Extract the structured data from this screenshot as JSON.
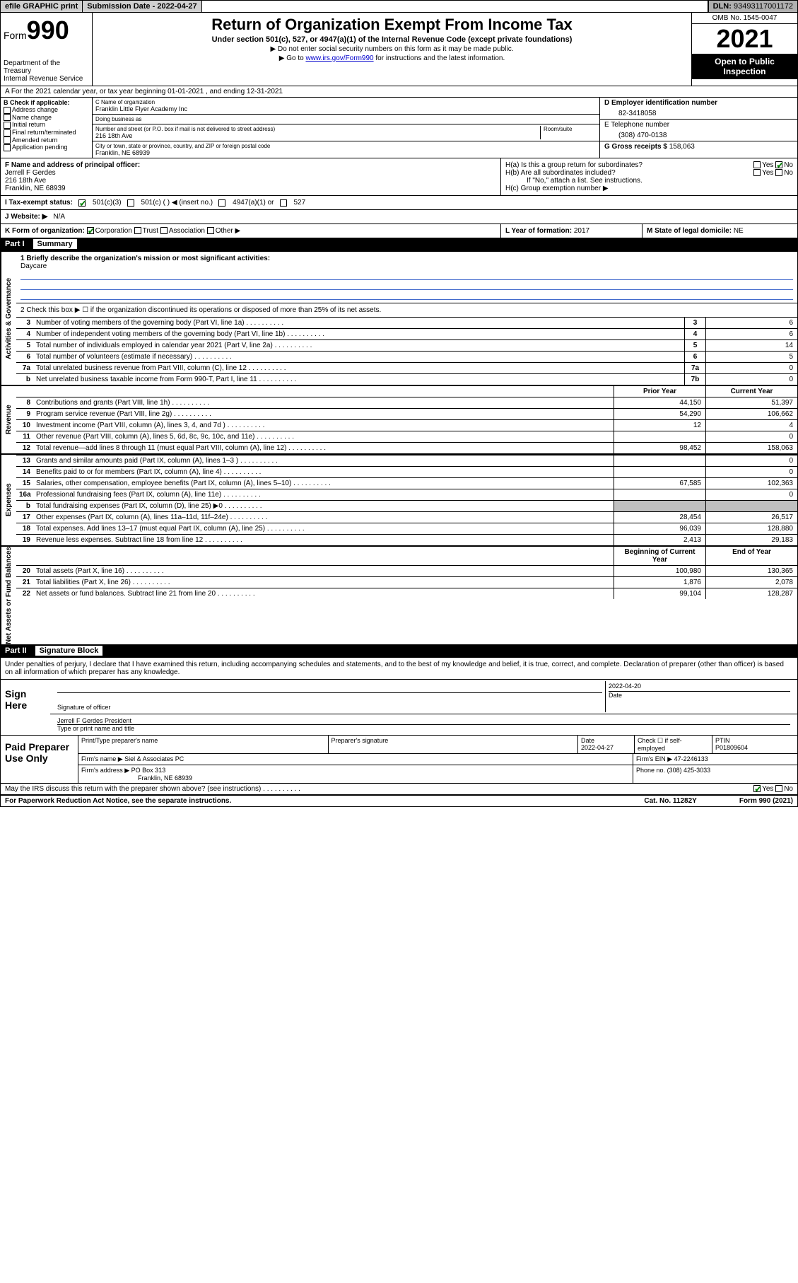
{
  "topbar": {
    "efile": "efile GRAPHIC print",
    "submission_label": "Submission Date",
    "submission_date": "2022-04-27",
    "dln_label": "DLN:",
    "dln": "93493117001172"
  },
  "header": {
    "form_word": "Form",
    "form_num": "990",
    "dept": "Department of the Treasury",
    "irs": "Internal Revenue Service",
    "title": "Return of Organization Exempt From Income Tax",
    "subtitle": "Under section 501(c), 527, or 4947(a)(1) of the Internal Revenue Code (except private foundations)",
    "instr1": "▶ Do not enter social security numbers on this form as it may be made public.",
    "instr2_pre": "▶ Go to ",
    "instr2_link": "www.irs.gov/Form990",
    "instr2_post": " for instructions and the latest information.",
    "omb": "OMB No. 1545-0047",
    "year": "2021",
    "open": "Open to Public Inspection"
  },
  "row_a": "A For the 2021 calendar year, or tax year beginning 01-01-2021  , and ending 12-31-2021",
  "section_b": {
    "label": "B Check if applicable:",
    "items": [
      "Address change",
      "Name change",
      "Initial return",
      "Final return/terminated",
      "Amended return",
      "Application pending"
    ]
  },
  "section_c": {
    "name_label": "C Name of organization",
    "name": "Franklin Little Flyer Academy Inc",
    "dba_label": "Doing business as",
    "dba": "",
    "addr_label": "Number and street (or P.O. box if mail is not delivered to street address)",
    "room_label": "Room/suite",
    "addr": "216 18th Ave",
    "city_label": "City or town, state or province, country, and ZIP or foreign postal code",
    "city": "Franklin, NE  68939"
  },
  "section_d": {
    "ein_label": "D Employer identification number",
    "ein": "82-3418058",
    "phone_label": "E Telephone number",
    "phone": "(308) 470-0138",
    "gross_label": "G Gross receipts $",
    "gross": "158,063"
  },
  "section_f": {
    "label": "F Name and address of principal officer:",
    "name": "Jerrell F Gerdes",
    "addr": "216 18th Ave",
    "city": "Franklin, NE  68939"
  },
  "section_h": {
    "ha": "H(a)  Is this a group return for subordinates?",
    "hb": "H(b)  Are all subordinates included?",
    "hb_note": "If \"No,\" attach a list. See instructions.",
    "hc": "H(c)  Group exemption number ▶",
    "yes": "Yes",
    "no": "No"
  },
  "status": {
    "label": "I  Tax-exempt status:",
    "c3": "501(c)(3)",
    "c_blank": "501(c) (   ) ◀ (insert no.)",
    "a1": "4947(a)(1) or",
    "s527": "527"
  },
  "website": {
    "label": "J  Website: ▶",
    "value": "N/A"
  },
  "k": {
    "label": "K Form of organization:",
    "corp": "Corporation",
    "trust": "Trust",
    "assoc": "Association",
    "other": "Other ▶"
  },
  "l": {
    "label": "L Year of formation:",
    "value": "2017"
  },
  "m": {
    "label": "M State of legal domicile:",
    "value": "NE"
  },
  "part1": {
    "label": "Part I",
    "title": "Summary"
  },
  "summary": {
    "mission_label": "1  Briefly describe the organization's mission or most significant activities:",
    "mission": "Daycare",
    "line2": "2  Check this box ▶ ☐ if the organization discontinued its operations or disposed of more than 25% of its net assets.",
    "rows_gov": [
      {
        "n": "3",
        "d": "Number of voting members of the governing body (Part VI, line 1a)",
        "b": "3",
        "v": "6"
      },
      {
        "n": "4",
        "d": "Number of independent voting members of the governing body (Part VI, line 1b)",
        "b": "4",
        "v": "6"
      },
      {
        "n": "5",
        "d": "Total number of individuals employed in calendar year 2021 (Part V, line 2a)",
        "b": "5",
        "v": "14"
      },
      {
        "n": "6",
        "d": "Total number of volunteers (estimate if necessary)",
        "b": "6",
        "v": "5"
      },
      {
        "n": "7a",
        "d": "Total unrelated business revenue from Part VIII, column (C), line 12",
        "b": "7a",
        "v": "0"
      },
      {
        "n": "b",
        "d": "Net unrelated business taxable income from Form 990-T, Part I, line 11",
        "b": "7b",
        "v": "0"
      }
    ],
    "hdr_prior": "Prior Year",
    "hdr_current": "Current Year",
    "rows_rev": [
      {
        "n": "8",
        "d": "Contributions and grants (Part VIII, line 1h)",
        "p": "44,150",
        "c": "51,397"
      },
      {
        "n": "9",
        "d": "Program service revenue (Part VIII, line 2g)",
        "p": "54,290",
        "c": "106,662"
      },
      {
        "n": "10",
        "d": "Investment income (Part VIII, column (A), lines 3, 4, and 7d )",
        "p": "12",
        "c": "4"
      },
      {
        "n": "11",
        "d": "Other revenue (Part VIII, column (A), lines 5, 6d, 8c, 9c, 10c, and 11e)",
        "p": "",
        "c": "0"
      },
      {
        "n": "12",
        "d": "Total revenue—add lines 8 through 11 (must equal Part VIII, column (A), line 12)",
        "p": "98,452",
        "c": "158,063"
      }
    ],
    "rows_exp": [
      {
        "n": "13",
        "d": "Grants and similar amounts paid (Part IX, column (A), lines 1–3 )",
        "p": "",
        "c": "0"
      },
      {
        "n": "14",
        "d": "Benefits paid to or for members (Part IX, column (A), line 4)",
        "p": "",
        "c": "0"
      },
      {
        "n": "15",
        "d": "Salaries, other compensation, employee benefits (Part IX, column (A), lines 5–10)",
        "p": "67,585",
        "c": "102,363"
      },
      {
        "n": "16a",
        "d": "Professional fundraising fees (Part IX, column (A), line 11e)",
        "p": "",
        "c": "0"
      },
      {
        "n": "b",
        "d": "Total fundraising expenses (Part IX, column (D), line 25) ▶0",
        "p": "gray",
        "c": "gray"
      },
      {
        "n": "17",
        "d": "Other expenses (Part IX, column (A), lines 11a–11d, 11f–24e)",
        "p": "28,454",
        "c": "26,517"
      },
      {
        "n": "18",
        "d": "Total expenses. Add lines 13–17 (must equal Part IX, column (A), line 25)",
        "p": "96,039",
        "c": "128,880"
      },
      {
        "n": "19",
        "d": "Revenue less expenses. Subtract line 18 from line 12",
        "p": "2,413",
        "c": "29,183"
      }
    ],
    "hdr_begin": "Beginning of Current Year",
    "hdr_end": "End of Year",
    "rows_net": [
      {
        "n": "20",
        "d": "Total assets (Part X, line 16)",
        "p": "100,980",
        "c": "130,365"
      },
      {
        "n": "21",
        "d": "Total liabilities (Part X, line 26)",
        "p": "1,876",
        "c": "2,078"
      },
      {
        "n": "22",
        "d": "Net assets or fund balances. Subtract line 21 from line 20",
        "p": "99,104",
        "c": "128,287"
      }
    ],
    "tab_gov": "Activities & Governance",
    "tab_rev": "Revenue",
    "tab_exp": "Expenses",
    "tab_net": "Net Assets or Fund Balances"
  },
  "part2": {
    "label": "Part II",
    "title": "Signature Block"
  },
  "sig": {
    "intro": "Under penalties of perjury, I declare that I have examined this return, including accompanying schedules and statements, and to the best of my knowledge and belief, it is true, correct, and complete. Declaration of preparer (other than officer) is based on all information of which preparer has any knowledge.",
    "here": "Sign Here",
    "sig_officer": "Signature of officer",
    "date": "Date",
    "date_val": "2022-04-20",
    "name_title": "Jerrell F Gerdes  President",
    "type_name": "Type or print name and title"
  },
  "prep": {
    "label": "Paid Preparer Use Only",
    "print_name": "Print/Type preparer's name",
    "prep_sig": "Preparer's signature",
    "date_label": "Date",
    "date": "2022-04-27",
    "check_self": "Check ☐ if self-employed",
    "ptin_label": "PTIN",
    "ptin": "P01809604",
    "firm_name_label": "Firm's name   ▶",
    "firm_name": "Siel & Associates PC",
    "firm_ein_label": "Firm's EIN ▶",
    "firm_ein": "47-2246133",
    "firm_addr_label": "Firm's address ▶",
    "firm_addr": "PO Box 313",
    "firm_city": "Franklin, NE  68939",
    "phone_label": "Phone no.",
    "phone": "(308) 425-3033"
  },
  "discuss": {
    "q": "May the IRS discuss this return with the preparer shown above? (see instructions)",
    "yes": "Yes",
    "no": "No"
  },
  "footer": {
    "left": "For Paperwork Reduction Act Notice, see the separate instructions.",
    "mid": "Cat. No. 11282Y",
    "right": "Form 990 (2021)"
  }
}
